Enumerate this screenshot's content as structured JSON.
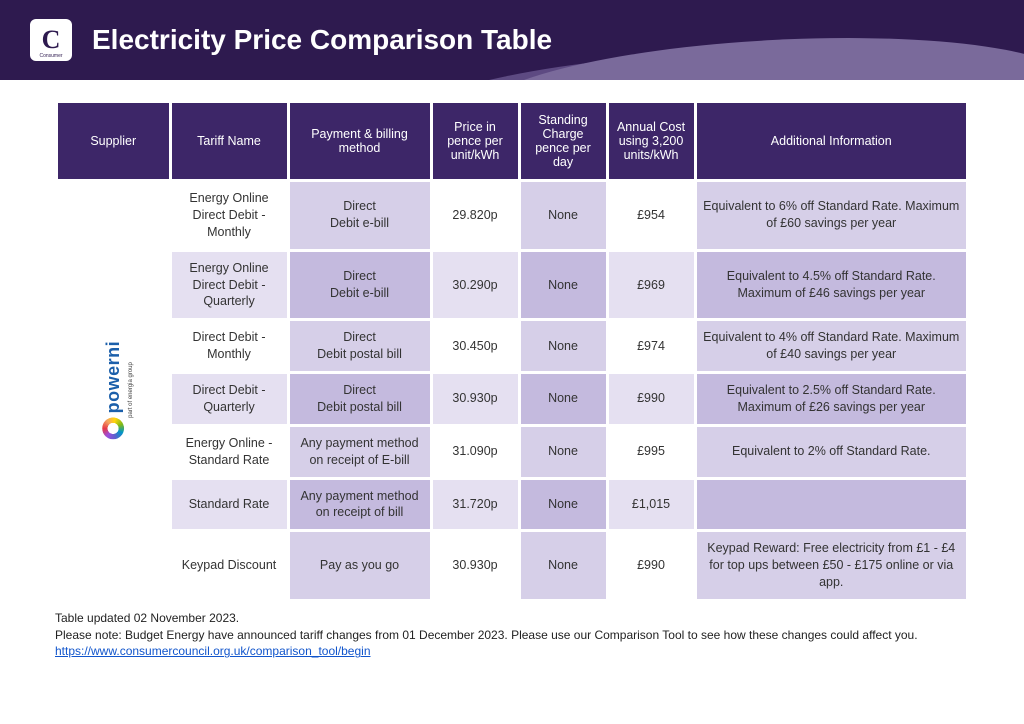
{
  "header": {
    "title": "Electricity Price Comparison Table",
    "logo_letter": "C",
    "logo_sub": "Consumer"
  },
  "colors": {
    "header_bg": "#2e1a4f",
    "th_bg": "#3d2668",
    "row_odd_tariff": "#ffffff",
    "row_odd_alt": "#d6cfe8",
    "row_even_tariff": "#e5e0f1",
    "row_even_alt": "#c4bade",
    "link": "#1155cc"
  },
  "table": {
    "columns": [
      "Supplier",
      "Tariff Name",
      "Payment & billing method",
      "Price in pence per unit/kWh",
      "Standing Charge pence per day",
      "Annual Cost using 3,200 units/kWh",
      "Additional Information"
    ],
    "supplier": {
      "name": "powerni",
      "sub": "part of energia group"
    },
    "rows": [
      {
        "tariff": "Energy Online Direct Debit - Monthly",
        "payment": "Direct\nDebit e-bill",
        "price": "29.820p",
        "standing": "None",
        "annual": "£954",
        "info": "Equivalent to 6% off Standard Rate. Maximum of £60 savings per year"
      },
      {
        "tariff": "Energy Online Direct Debit - Quarterly",
        "payment": "Direct\nDebit e-bill",
        "price": "30.290p",
        "standing": "None",
        "annual": "£969",
        "info": "Equivalent to 4.5% off Standard Rate. Maximum of £46 savings per year"
      },
      {
        "tariff": "Direct Debit - Monthly",
        "payment": "Direct\nDebit postal bill",
        "price": "30.450p",
        "standing": "None",
        "annual": "£974",
        "info": "Equivalent to 4% off Standard Rate. Maximum of £40 savings per year"
      },
      {
        "tariff": "Direct Debit - Quarterly",
        "payment": "Direct\nDebit postal bill",
        "price": "30.930p",
        "standing": "None",
        "annual": "£990",
        "info": "Equivalent to 2.5% off Standard Rate. Maximum of £26 savings per year"
      },
      {
        "tariff": "Energy Online - Standard Rate",
        "payment": "Any payment method on receipt of E-bill",
        "price": "31.090p",
        "standing": "None",
        "annual": "£995",
        "info": "Equivalent to 2% off Standard Rate."
      },
      {
        "tariff": "Standard Rate",
        "payment": "Any payment method on receipt of bill",
        "price": "31.720p",
        "standing": "None",
        "annual": "£1,015",
        "info": ""
      },
      {
        "tariff": "Keypad Discount",
        "payment": "Pay as you go",
        "price": "30.930p",
        "standing": "None",
        "annual": "£990",
        "info": "Keypad Reward: Free electricity from £1 - £4 for top ups between £50 - £175 online or via app."
      }
    ]
  },
  "footnote": {
    "updated": "Table updated 02 November 2023.",
    "note": "Please note: Budget Energy have announced tariff changes from 01 December 2023. Please use our Comparison Tool to see how these changes could affect you. ",
    "link_text": "https://www.consumercouncil.org.uk/comparison_tool/begin",
    "link_href": "https://www.consumercouncil.org.uk/comparison_tool/begin"
  }
}
